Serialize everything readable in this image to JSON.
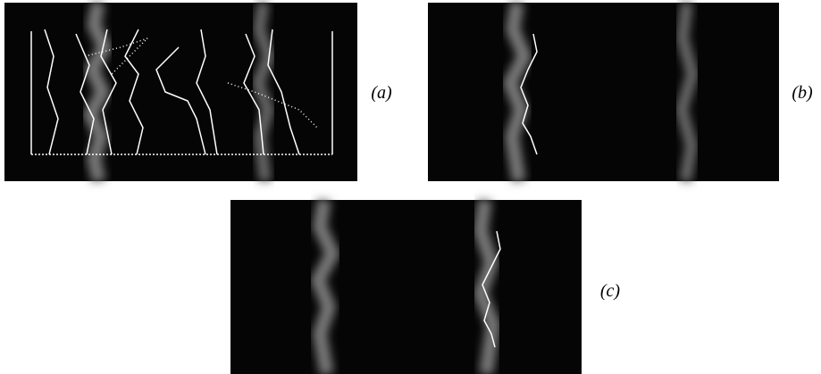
{
  "labels": [
    "(a)",
    "(b)",
    "(c)"
  ]
}
